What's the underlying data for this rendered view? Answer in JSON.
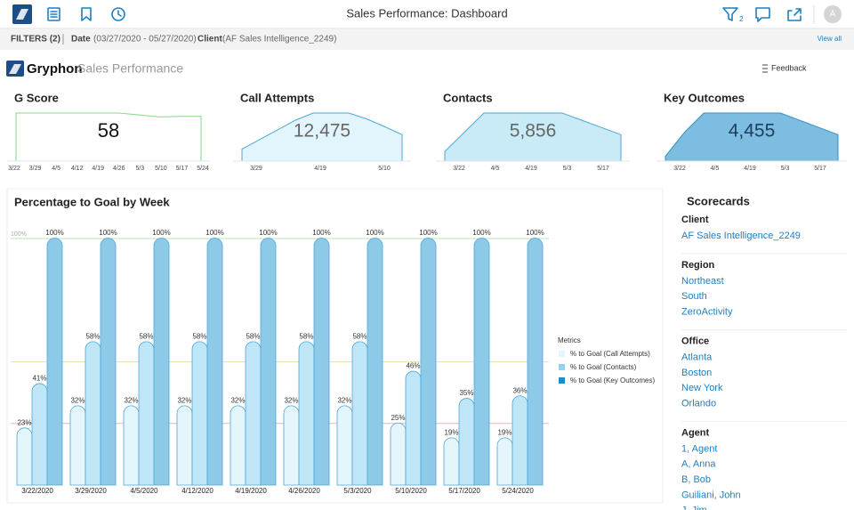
{
  "header": {
    "title": "Sales Performance: Dashboard",
    "avatar": "A",
    "filter_badge": "2"
  },
  "filters": {
    "label": "FILTERS (2)",
    "date_label": "Date",
    "date_value": "(03/27/2020 - 05/27/2020)",
    "client_label": "Client",
    "client_value": "(AF Sales Intelligence_2249)",
    "view_all": "View all"
  },
  "brand": {
    "name": "Gryphon",
    "subtitle": "Sales Performance",
    "feedback": "Feedback"
  },
  "kpis": [
    {
      "title": "G Score",
      "value": "58",
      "labels": [
        "3/22",
        "3/29",
        "4/5",
        "4/12",
        "4/19",
        "4/26",
        "5/3",
        "5/10",
        "5/17",
        "5/24"
      ],
      "trend": [
        100,
        100,
        100,
        100,
        100,
        100,
        96,
        92,
        93,
        93
      ],
      "color": "#ffffff",
      "stroke": "#86d886"
    },
    {
      "title": "Call Attempts",
      "value": "12,475",
      "labels": [
        "3/29",
        "4/19",
        "5/10"
      ],
      "trend": [
        25,
        45,
        65,
        85,
        100,
        100,
        100,
        88,
        72,
        55
      ],
      "color": "#e3f5fc",
      "stroke": "#4aa8d8"
    },
    {
      "title": "Contacts",
      "value": "5,856",
      "labels": [
        "3/22",
        "4/5",
        "4/19",
        "5/3",
        "5/17"
      ],
      "trend": [
        20,
        60,
        100,
        100,
        100,
        100,
        100,
        85,
        70,
        55
      ],
      "color": "#c9ebf8",
      "stroke": "#4aa8d8"
    },
    {
      "title": "Key Outcomes",
      "value": "4,455",
      "labels": [
        "3/22",
        "4/5",
        "4/19",
        "5/3",
        "5/17"
      ],
      "trend": [
        10,
        60,
        100,
        100,
        100,
        100,
        100,
        85,
        70,
        55
      ],
      "color": "#7dbde2",
      "stroke": "#3a8fc4"
    }
  ],
  "chart_data": {
    "type": "bar",
    "title": "Percentage to Goal by Week",
    "categories": [
      "3/22/2020",
      "3/29/2020",
      "4/5/2020",
      "4/12/2020",
      "4/19/2020",
      "4/26/2020",
      "5/3/2020",
      "5/10/2020",
      "5/17/2020",
      "5/24/2020"
    ],
    "series": [
      {
        "name": "% to Goal (Call Attempts)",
        "color": "#e4f5fc",
        "values": [
          23,
          32,
          32,
          32,
          32,
          32,
          32,
          25,
          19,
          19
        ],
        "value_labels": [
          "23%",
          "32%",
          "32%",
          "32%",
          "32%",
          "32%",
          "32%",
          "25%",
          "19%",
          "19%"
        ]
      },
      {
        "name": "% to Goal (Contacts)",
        "color": "#bfe6f6",
        "values": [
          41,
          58,
          58,
          58,
          58,
          58,
          58,
          46,
          35,
          36
        ],
        "value_labels": [
          "41%",
          "58%",
          "58%",
          "58%",
          "58%",
          "58%",
          "58%",
          "46%",
          "35%",
          "36%"
        ]
      },
      {
        "name": "% to Goal (Key Outcomes)",
        "color": "#8ccae8",
        "values": [
          100,
          100,
          100,
          100,
          100,
          100,
          100,
          100,
          100,
          100
        ],
        "value_labels": [
          "100%",
          "100%",
          "100%",
          "100%",
          "100%",
          "100%",
          "100%",
          "100%",
          "100%",
          "100%"
        ]
      }
    ],
    "legend_title": "Metrics",
    "legend_colors": [
      "#e4f5fc",
      "#8fd3f0",
      "#1f8cc7"
    ],
    "ylim": [
      0,
      100
    ],
    "yticks": [
      {
        "value": 100,
        "label": "100%"
      }
    ],
    "reference_lines": [
      {
        "value": 100,
        "color": "#b6e6b6"
      },
      {
        "value": 50,
        "color": "#f6dfb8"
      },
      {
        "value": 25,
        "color": "#f2b0b0"
      }
    ],
    "grid": true
  },
  "scorecards": {
    "title": "Scorecards",
    "sections": [
      {
        "label": "Client",
        "items": [
          "AF Sales Intelligence_2249"
        ]
      },
      {
        "label": "Region",
        "items": [
          "Northeast",
          "South",
          "ZeroActivity"
        ]
      },
      {
        "label": "Office",
        "items": [
          "Atlanta",
          "Boston",
          "New York",
          "Orlando"
        ]
      },
      {
        "label": "Agent",
        "items": [
          "1, Agent",
          "A, Anna",
          "B, Bob",
          "Guiliani, John",
          "J, Jim"
        ]
      }
    ]
  }
}
